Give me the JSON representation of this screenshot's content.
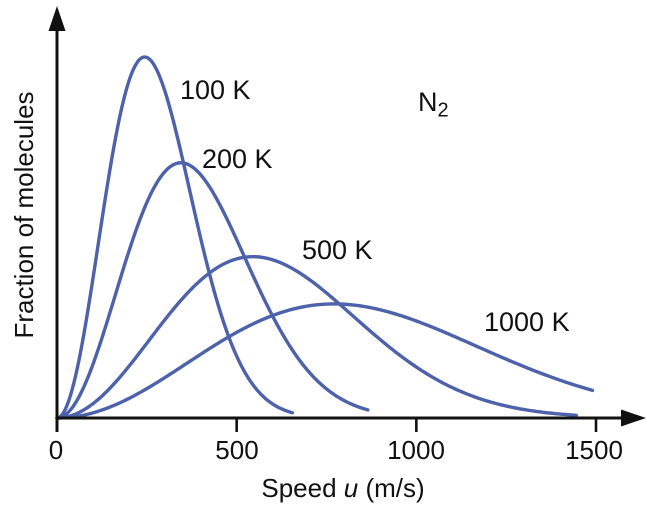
{
  "figure": {
    "background_color": "#ffffff",
    "axis_color": "#111111",
    "curve_color": "#4d62aa",
    "gas_label": {
      "element": "N",
      "subscript": "2"
    }
  },
  "chart_data": {
    "type": "line",
    "ylabel": "Fraction of molecules",
    "xlabel_prefix": "Speed ",
    "xlabel_symbol": "u",
    "xlabel_suffix": " (m/s)",
    "x_ticks": [
      0,
      500,
      1000,
      1500
    ],
    "x_tick_labels": [
      "0",
      "500",
      "1000",
      "1500"
    ],
    "xlim": [
      0,
      1640
    ],
    "y_axis_scale": "arbitrary units, no tick marks",
    "grid": false,
    "legend_position": "inline labels beside each curve",
    "annotation": "N2",
    "curve_model": "Maxwell-Boltzmann: f(v) = peak * (v/vp)^2 * exp(1-(v/vp)^2)",
    "series": [
      {
        "name": "100 K",
        "temperature_K": 100,
        "peak_speed_m_s": 244,
        "relative_peak_height": 1.0,
        "visible_end_speed_m_s": 655
      },
      {
        "name": "200 K",
        "temperature_K": 200,
        "peak_speed_m_s": 345,
        "relative_peak_height": 0.707,
        "visible_end_speed_m_s": 865
      },
      {
        "name": "500 K",
        "temperature_K": 500,
        "peak_speed_m_s": 545,
        "relative_peak_height": 0.447,
        "visible_end_speed_m_s": 1445
      },
      {
        "name": "1000 K",
        "temperature_K": 1000,
        "peak_speed_m_s": 771,
        "relative_peak_height": 0.316,
        "visible_end_speed_m_s": 1490
      }
    ]
  }
}
